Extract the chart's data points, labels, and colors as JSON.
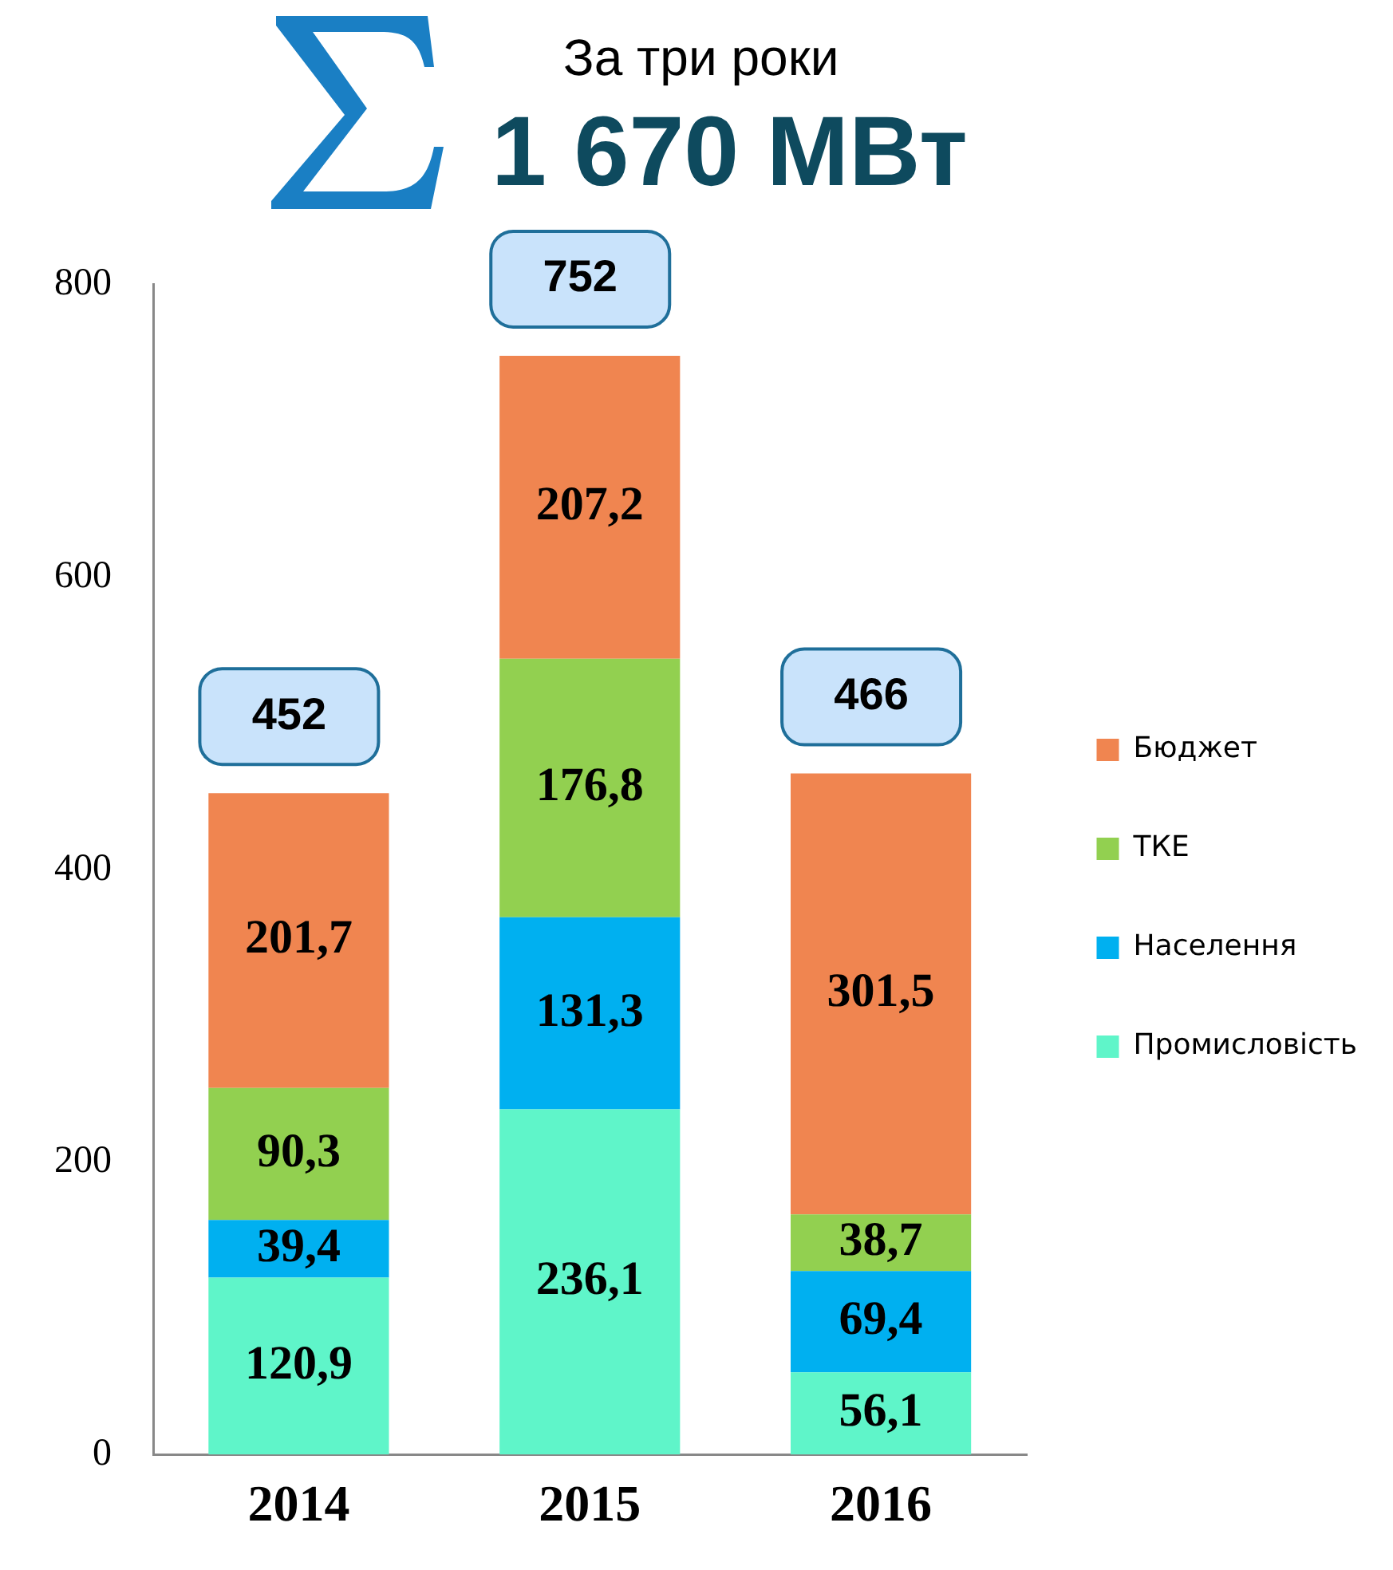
{
  "chart_data": {
    "type": "bar",
    "title": "За три роки",
    "subtitle": "1 670 МВт",
    "categories": [
      "2014",
      "2015",
      "2016"
    ],
    "stacked": true,
    "ylim": [
      0,
      800
    ],
    "yticks": [
      0,
      200,
      400,
      600,
      800
    ],
    "grid": false,
    "legend": "right",
    "totals": [
      "452",
      "752",
      "466"
    ],
    "series": [
      {
        "name": "Промисловість",
        "color": "#5ff5c9",
        "values": [
          120.9,
          236.1,
          56.1
        ],
        "value_labels": [
          "120,9",
          "236,1",
          "56,1"
        ]
      },
      {
        "name": "Населення",
        "color": "#00b0f0",
        "values": [
          39.4,
          131.3,
          69.4
        ],
        "value_labels": [
          "39,4",
          "131,3",
          "69,4"
        ]
      },
      {
        "name": "ТКЕ",
        "color": "#92d050",
        "values": [
          90.3,
          176.8,
          38.7
        ],
        "value_labels": [
          "90,3",
          "176,8",
          "38,7"
        ]
      },
      {
        "name": "Бюджет",
        "color": "#f08550",
        "values": [
          201.7,
          207.2,
          301.5
        ],
        "value_labels": [
          "201,7",
          "207,2",
          "301,5"
        ]
      }
    ]
  }
}
